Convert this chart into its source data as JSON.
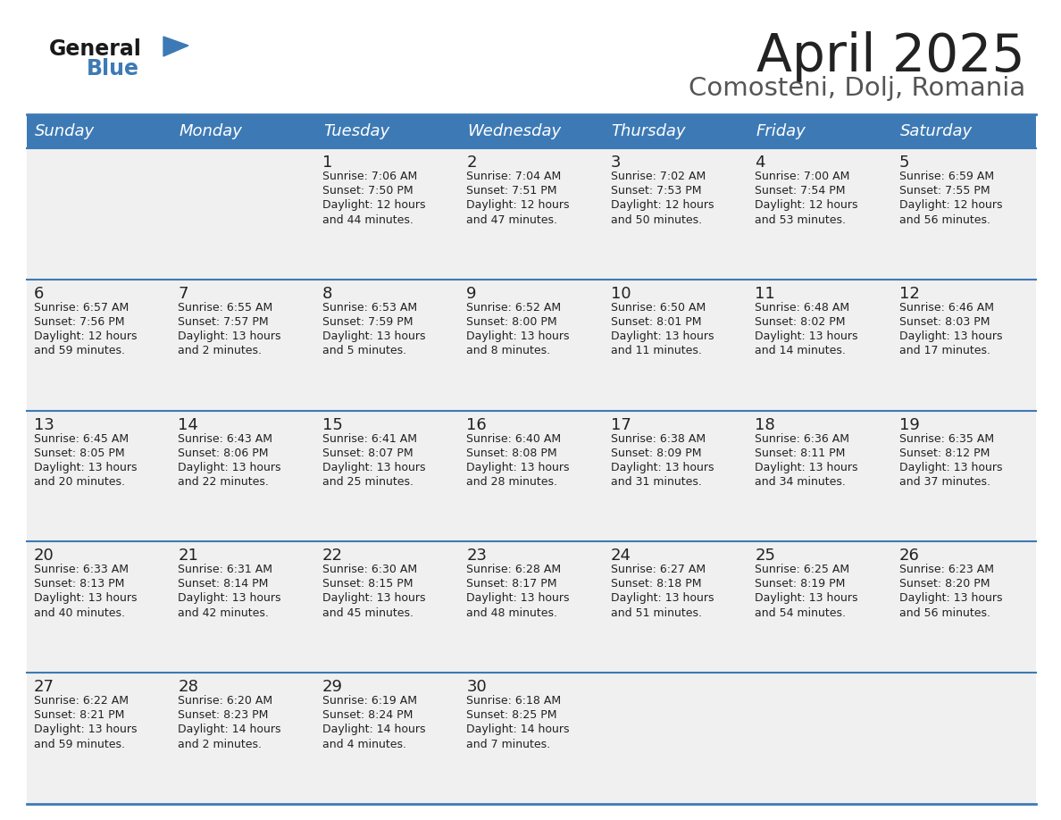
{
  "title": "April 2025",
  "subtitle": "Comosteni, Dolj, Romania",
  "header_bg_color": "#3d7ab5",
  "header_text_color": "#ffffff",
  "cell_bg_color": "#f0f0f0",
  "text_color": "#222222",
  "border_color": "#3d7ab5",
  "days_of_week": [
    "Sunday",
    "Monday",
    "Tuesday",
    "Wednesday",
    "Thursday",
    "Friday",
    "Saturday"
  ],
  "weeks": [
    [
      {
        "day": "",
        "sunrise": "",
        "sunset": "",
        "daylight": ""
      },
      {
        "day": "",
        "sunrise": "",
        "sunset": "",
        "daylight": ""
      },
      {
        "day": "1",
        "sunrise": "Sunrise: 7:06 AM",
        "sunset": "Sunset: 7:50 PM",
        "daylight": "Daylight: 12 hours\nand 44 minutes."
      },
      {
        "day": "2",
        "sunrise": "Sunrise: 7:04 AM",
        "sunset": "Sunset: 7:51 PM",
        "daylight": "Daylight: 12 hours\nand 47 minutes."
      },
      {
        "day": "3",
        "sunrise": "Sunrise: 7:02 AM",
        "sunset": "Sunset: 7:53 PM",
        "daylight": "Daylight: 12 hours\nand 50 minutes."
      },
      {
        "day": "4",
        "sunrise": "Sunrise: 7:00 AM",
        "sunset": "Sunset: 7:54 PM",
        "daylight": "Daylight: 12 hours\nand 53 minutes."
      },
      {
        "day": "5",
        "sunrise": "Sunrise: 6:59 AM",
        "sunset": "Sunset: 7:55 PM",
        "daylight": "Daylight: 12 hours\nand 56 minutes."
      }
    ],
    [
      {
        "day": "6",
        "sunrise": "Sunrise: 6:57 AM",
        "sunset": "Sunset: 7:56 PM",
        "daylight": "Daylight: 12 hours\nand 59 minutes."
      },
      {
        "day": "7",
        "sunrise": "Sunrise: 6:55 AM",
        "sunset": "Sunset: 7:57 PM",
        "daylight": "Daylight: 13 hours\nand 2 minutes."
      },
      {
        "day": "8",
        "sunrise": "Sunrise: 6:53 AM",
        "sunset": "Sunset: 7:59 PM",
        "daylight": "Daylight: 13 hours\nand 5 minutes."
      },
      {
        "day": "9",
        "sunrise": "Sunrise: 6:52 AM",
        "sunset": "Sunset: 8:00 PM",
        "daylight": "Daylight: 13 hours\nand 8 minutes."
      },
      {
        "day": "10",
        "sunrise": "Sunrise: 6:50 AM",
        "sunset": "Sunset: 8:01 PM",
        "daylight": "Daylight: 13 hours\nand 11 minutes."
      },
      {
        "day": "11",
        "sunrise": "Sunrise: 6:48 AM",
        "sunset": "Sunset: 8:02 PM",
        "daylight": "Daylight: 13 hours\nand 14 minutes."
      },
      {
        "day": "12",
        "sunrise": "Sunrise: 6:46 AM",
        "sunset": "Sunset: 8:03 PM",
        "daylight": "Daylight: 13 hours\nand 17 minutes."
      }
    ],
    [
      {
        "day": "13",
        "sunrise": "Sunrise: 6:45 AM",
        "sunset": "Sunset: 8:05 PM",
        "daylight": "Daylight: 13 hours\nand 20 minutes."
      },
      {
        "day": "14",
        "sunrise": "Sunrise: 6:43 AM",
        "sunset": "Sunset: 8:06 PM",
        "daylight": "Daylight: 13 hours\nand 22 minutes."
      },
      {
        "day": "15",
        "sunrise": "Sunrise: 6:41 AM",
        "sunset": "Sunset: 8:07 PM",
        "daylight": "Daylight: 13 hours\nand 25 minutes."
      },
      {
        "day": "16",
        "sunrise": "Sunrise: 6:40 AM",
        "sunset": "Sunset: 8:08 PM",
        "daylight": "Daylight: 13 hours\nand 28 minutes."
      },
      {
        "day": "17",
        "sunrise": "Sunrise: 6:38 AM",
        "sunset": "Sunset: 8:09 PM",
        "daylight": "Daylight: 13 hours\nand 31 minutes."
      },
      {
        "day": "18",
        "sunrise": "Sunrise: 6:36 AM",
        "sunset": "Sunset: 8:11 PM",
        "daylight": "Daylight: 13 hours\nand 34 minutes."
      },
      {
        "day": "19",
        "sunrise": "Sunrise: 6:35 AM",
        "sunset": "Sunset: 8:12 PM",
        "daylight": "Daylight: 13 hours\nand 37 minutes."
      }
    ],
    [
      {
        "day": "20",
        "sunrise": "Sunrise: 6:33 AM",
        "sunset": "Sunset: 8:13 PM",
        "daylight": "Daylight: 13 hours\nand 40 minutes."
      },
      {
        "day": "21",
        "sunrise": "Sunrise: 6:31 AM",
        "sunset": "Sunset: 8:14 PM",
        "daylight": "Daylight: 13 hours\nand 42 minutes."
      },
      {
        "day": "22",
        "sunrise": "Sunrise: 6:30 AM",
        "sunset": "Sunset: 8:15 PM",
        "daylight": "Daylight: 13 hours\nand 45 minutes."
      },
      {
        "day": "23",
        "sunrise": "Sunrise: 6:28 AM",
        "sunset": "Sunset: 8:17 PM",
        "daylight": "Daylight: 13 hours\nand 48 minutes."
      },
      {
        "day": "24",
        "sunrise": "Sunrise: 6:27 AM",
        "sunset": "Sunset: 8:18 PM",
        "daylight": "Daylight: 13 hours\nand 51 minutes."
      },
      {
        "day": "25",
        "sunrise": "Sunrise: 6:25 AM",
        "sunset": "Sunset: 8:19 PM",
        "daylight": "Daylight: 13 hours\nand 54 minutes."
      },
      {
        "day": "26",
        "sunrise": "Sunrise: 6:23 AM",
        "sunset": "Sunset: 8:20 PM",
        "daylight": "Daylight: 13 hours\nand 56 minutes."
      }
    ],
    [
      {
        "day": "27",
        "sunrise": "Sunrise: 6:22 AM",
        "sunset": "Sunset: 8:21 PM",
        "daylight": "Daylight: 13 hours\nand 59 minutes."
      },
      {
        "day": "28",
        "sunrise": "Sunrise: 6:20 AM",
        "sunset": "Sunset: 8:23 PM",
        "daylight": "Daylight: 14 hours\nand 2 minutes."
      },
      {
        "day": "29",
        "sunrise": "Sunrise: 6:19 AM",
        "sunset": "Sunset: 8:24 PM",
        "daylight": "Daylight: 14 hours\nand 4 minutes."
      },
      {
        "day": "30",
        "sunrise": "Sunrise: 6:18 AM",
        "sunset": "Sunset: 8:25 PM",
        "daylight": "Daylight: 14 hours\nand 7 minutes."
      },
      {
        "day": "",
        "sunrise": "",
        "sunset": "",
        "daylight": ""
      },
      {
        "day": "",
        "sunrise": "",
        "sunset": "",
        "daylight": ""
      },
      {
        "day": "",
        "sunrise": "",
        "sunset": "",
        "daylight": ""
      }
    ]
  ],
  "logo_general_color": "#1a1a1a",
  "logo_blue_color": "#3d7ab5",
  "logo_triangle_color": "#3d7ab5"
}
